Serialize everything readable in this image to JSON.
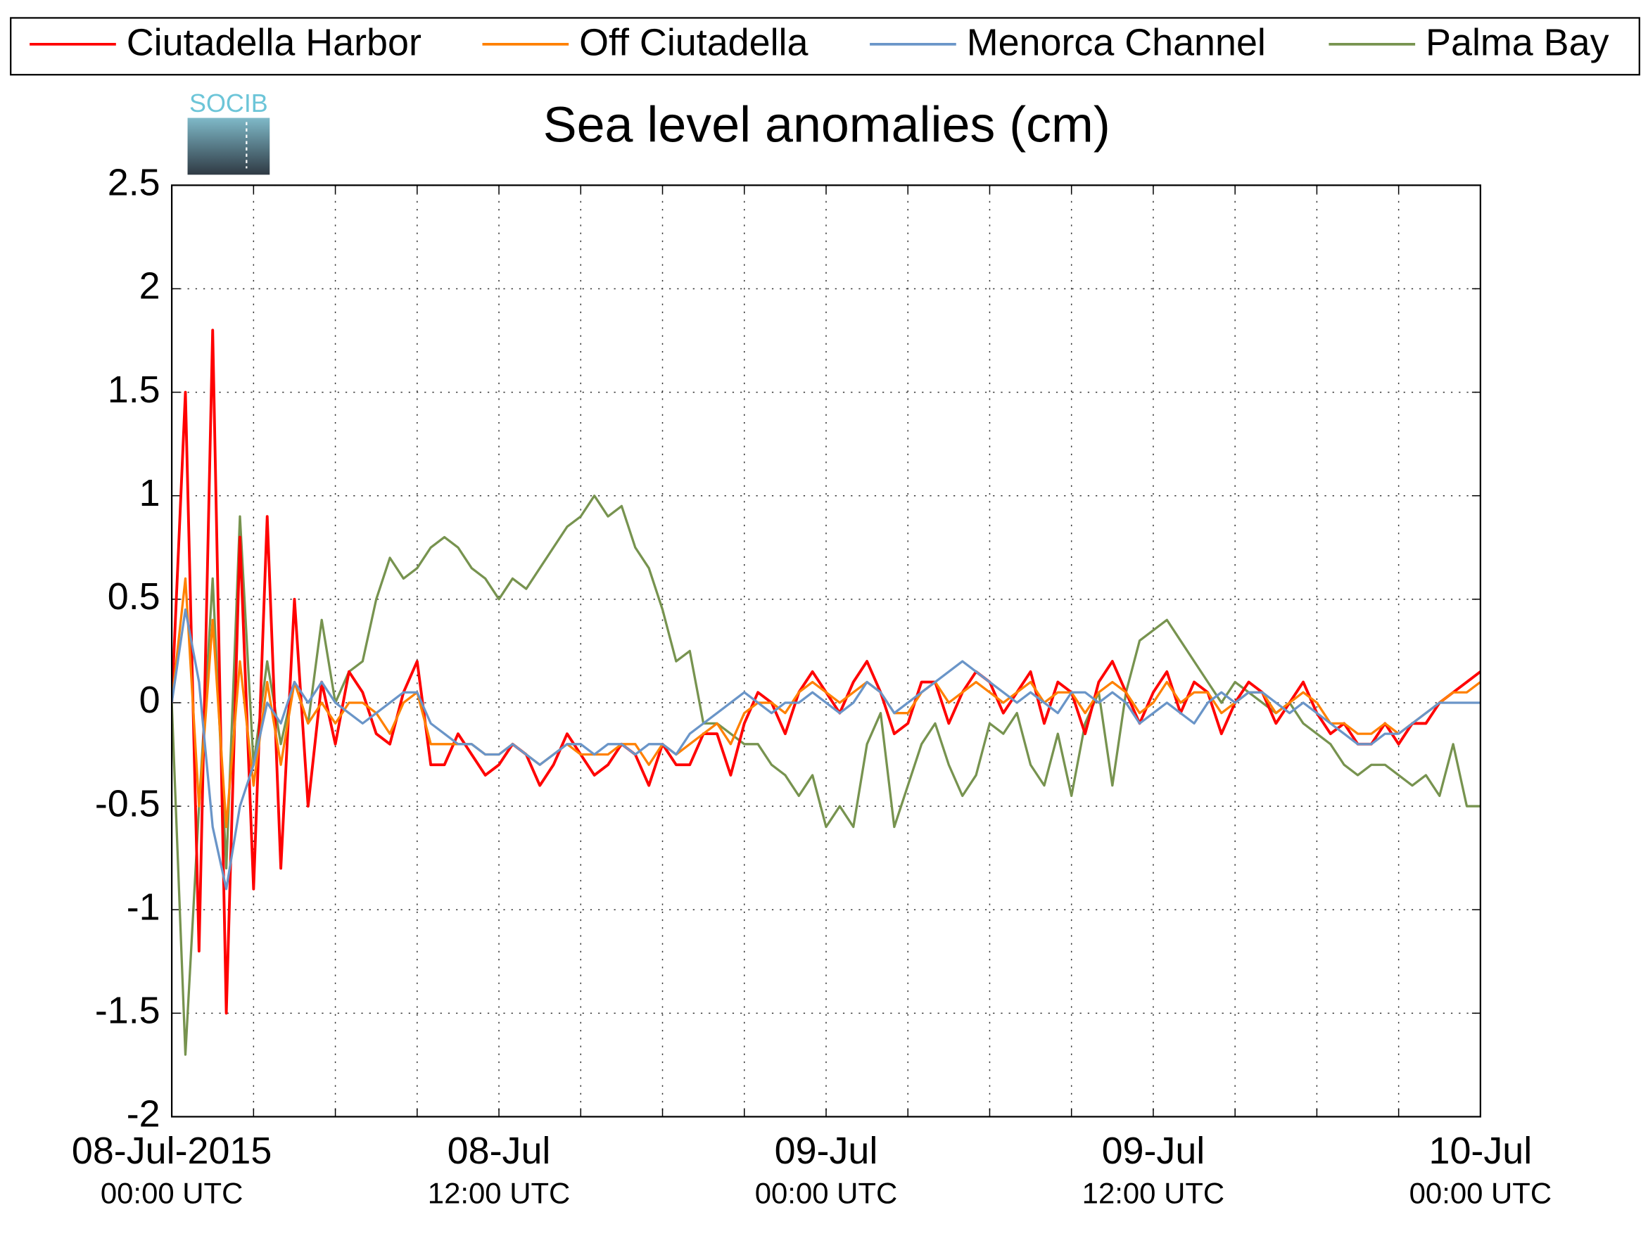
{
  "chart_data": {
    "type": "line",
    "title": "Sea level anomalies (cm)",
    "logo": "SOCIB",
    "x": [
      "2015-07-08T00:00",
      "2015-07-08T00:30",
      "2015-07-08T01:00",
      "2015-07-08T01:30",
      "2015-07-08T02:00",
      "2015-07-08T02:30",
      "2015-07-08T03:00",
      "2015-07-08T03:30",
      "2015-07-08T04:00",
      "2015-07-08T04:30",
      "2015-07-08T05:00",
      "2015-07-08T05:30",
      "2015-07-08T06:00",
      "2015-07-08T06:30",
      "2015-07-08T07:00",
      "2015-07-08T07:30",
      "2015-07-08T08:00",
      "2015-07-08T08:30",
      "2015-07-08T09:00",
      "2015-07-08T09:30",
      "2015-07-08T10:00",
      "2015-07-08T10:30",
      "2015-07-08T11:00",
      "2015-07-08T11:30",
      "2015-07-08T12:00",
      "2015-07-08T12:30",
      "2015-07-08T13:00",
      "2015-07-08T13:30",
      "2015-07-08T14:00",
      "2015-07-08T14:30",
      "2015-07-08T15:00",
      "2015-07-08T15:30",
      "2015-07-08T16:00",
      "2015-07-08T16:30",
      "2015-07-08T17:00",
      "2015-07-08T17:30",
      "2015-07-08T18:00",
      "2015-07-08T18:30",
      "2015-07-08T19:00",
      "2015-07-08T19:30",
      "2015-07-08T20:00",
      "2015-07-08T20:30",
      "2015-07-08T21:00",
      "2015-07-08T21:30",
      "2015-07-08T22:00",
      "2015-07-08T22:30",
      "2015-07-08T23:00",
      "2015-07-08T23:30",
      "2015-07-09T00:00",
      "2015-07-09T00:30",
      "2015-07-09T01:00",
      "2015-07-09T01:30",
      "2015-07-09T02:00",
      "2015-07-09T02:30",
      "2015-07-09T03:00",
      "2015-07-09T03:30",
      "2015-07-09T04:00",
      "2015-07-09T04:30",
      "2015-07-09T05:00",
      "2015-07-09T05:30",
      "2015-07-09T06:00",
      "2015-07-09T06:30",
      "2015-07-09T07:00",
      "2015-07-09T07:30",
      "2015-07-09T08:00",
      "2015-07-09T08:30",
      "2015-07-09T09:00",
      "2015-07-09T09:30",
      "2015-07-09T10:00",
      "2015-07-09T10:30",
      "2015-07-09T11:00",
      "2015-07-09T11:30",
      "2015-07-09T12:00",
      "2015-07-09T12:30",
      "2015-07-09T13:00",
      "2015-07-09T13:30",
      "2015-07-09T14:00",
      "2015-07-09T14:30",
      "2015-07-09T15:00",
      "2015-07-09T15:30",
      "2015-07-09T16:00",
      "2015-07-09T16:30",
      "2015-07-09T17:00",
      "2015-07-09T17:30",
      "2015-07-09T18:00",
      "2015-07-09T18:30",
      "2015-07-09T19:00",
      "2015-07-09T19:30",
      "2015-07-09T20:00",
      "2015-07-09T20:30",
      "2015-07-09T21:00",
      "2015-07-09T21:30",
      "2015-07-09T22:00",
      "2015-07-09T22:30",
      "2015-07-09T23:00",
      "2015-07-09T23:30",
      "2015-07-10T00:00"
    ],
    "series": [
      {
        "name": "Ciutadella Harbor",
        "color": "#ff0000",
        "values": [
          0,
          1.5,
          -1.2,
          1.8,
          -1.5,
          0.8,
          -0.9,
          0.9,
          -0.8,
          0.5,
          -0.5,
          0.1,
          -0.2,
          0.15,
          0.05,
          -0.15,
          -0.2,
          0.05,
          0.2,
          -0.3,
          -0.3,
          -0.15,
          -0.25,
          -0.35,
          -0.3,
          -0.2,
          -0.25,
          -0.4,
          -0.3,
          -0.15,
          -0.25,
          -0.35,
          -0.3,
          -0.2,
          -0.25,
          -0.4,
          -0.2,
          -0.3,
          -0.3,
          -0.15,
          -0.15,
          -0.35,
          -0.1,
          0.05,
          0,
          -0.15,
          0.05,
          0.15,
          0.05,
          -0.05,
          0.1,
          0.2,
          0.05,
          -0.15,
          -0.1,
          0.1,
          0.1,
          -0.1,
          0.05,
          0.15,
          0.1,
          -0.05,
          0.05,
          0.15,
          -0.1,
          0.1,
          0.05,
          -0.15,
          0.1,
          0.2,
          0.05,
          -0.1,
          0.05,
          0.15,
          -0.05,
          0.1,
          0.05,
          -0.15,
          0,
          0.1,
          0.05,
          -0.1,
          0,
          0.1,
          -0.05,
          -0.15,
          -0.1,
          -0.2,
          -0.2,
          -0.1,
          -0.2,
          -0.1,
          -0.1,
          0,
          0.05,
          0.1,
          0.15
        ]
      },
      {
        "name": "Off Ciutadella",
        "color": "#ff8000",
        "values": [
          0,
          0.6,
          -0.5,
          0.4,
          -0.6,
          0.2,
          -0.4,
          0.1,
          -0.3,
          0.1,
          -0.1,
          0,
          -0.1,
          0,
          0,
          -0.05,
          -0.15,
          0,
          0.05,
          -0.2,
          -0.2,
          -0.2,
          -0.2,
          -0.25,
          -0.25,
          -0.2,
          -0.25,
          -0.3,
          -0.25,
          -0.2,
          -0.25,
          -0.25,
          -0.25,
          -0.2,
          -0.2,
          -0.3,
          -0.2,
          -0.25,
          -0.2,
          -0.15,
          -0.1,
          -0.2,
          -0.05,
          0,
          0,
          -0.05,
          0.05,
          0.1,
          0.05,
          0,
          0.05,
          0.1,
          0.05,
          -0.05,
          -0.05,
          0.05,
          0.1,
          0,
          0.05,
          0.1,
          0.05,
          0,
          0.05,
          0.1,
          0,
          0.05,
          0.05,
          -0.05,
          0.05,
          0.1,
          0.05,
          -0.05,
          0,
          0.1,
          0,
          0.05,
          0.05,
          -0.05,
          0,
          0.05,
          0.05,
          -0.05,
          0,
          0.05,
          0,
          -0.1,
          -0.1,
          -0.15,
          -0.15,
          -0.1,
          -0.15,
          -0.1,
          -0.05,
          0,
          0.05,
          0.05,
          0.1
        ]
      },
      {
        "name": "Menorca Channel",
        "color": "#6a95c8",
        "values": [
          0,
          0.45,
          0.1,
          -0.6,
          -0.9,
          -0.5,
          -0.3,
          0,
          -0.1,
          0.1,
          0,
          0.1,
          0,
          -0.05,
          -0.1,
          -0.05,
          0,
          0.05,
          0.05,
          -0.1,
          -0.15,
          -0.2,
          -0.2,
          -0.25,
          -0.25,
          -0.2,
          -0.25,
          -0.3,
          -0.25,
          -0.2,
          -0.2,
          -0.25,
          -0.2,
          -0.2,
          -0.25,
          -0.2,
          -0.2,
          -0.25,
          -0.15,
          -0.1,
          -0.05,
          0,
          0.05,
          0,
          -0.05,
          0,
          0,
          0.05,
          0,
          -0.05,
          0,
          0.1,
          0.05,
          -0.05,
          0,
          0.05,
          0.1,
          0.15,
          0.2,
          0.15,
          0.1,
          0.05,
          0,
          0.05,
          0,
          -0.05,
          0.05,
          0.05,
          0,
          0.05,
          0,
          -0.1,
          -0.05,
          0,
          -0.05,
          -0.1,
          0,
          0.05,
          0,
          0.05,
          0.05,
          0,
          -0.05,
          0,
          -0.05,
          -0.1,
          -0.15,
          -0.2,
          -0.2,
          -0.15,
          -0.15,
          -0.1,
          -0.05,
          0,
          0,
          0,
          0
        ]
      },
      {
        "name": "Palma Bay",
        "color": "#77934f",
        "values": [
          0,
          -1.7,
          -0.5,
          0.6,
          -0.8,
          0.9,
          -0.3,
          0.2,
          -0.2,
          0.1,
          -0.1,
          0.4,
          0,
          0.15,
          0.2,
          0.5,
          0.7,
          0.6,
          0.65,
          0.75,
          0.8,
          0.75,
          0.65,
          0.6,
          0.5,
          0.6,
          0.55,
          0.65,
          0.75,
          0.85,
          0.9,
          1.0,
          0.9,
          0.95,
          0.75,
          0.65,
          0.45,
          0.2,
          0.25,
          -0.1,
          -0.1,
          -0.15,
          -0.2,
          -0.2,
          -0.3,
          -0.35,
          -0.45,
          -0.35,
          -0.6,
          -0.5,
          -0.6,
          -0.2,
          -0.05,
          -0.6,
          -0.4,
          -0.2,
          -0.1,
          -0.3,
          -0.45,
          -0.35,
          -0.1,
          -0.15,
          -0.05,
          -0.3,
          -0.4,
          -0.15,
          -0.45,
          -0.1,
          0.05,
          -0.4,
          0.05,
          0.3,
          0.35,
          0.4,
          0.3,
          0.2,
          0.1,
          0,
          0.1,
          0.05,
          0,
          -0.05,
          0,
          -0.1,
          -0.15,
          -0.2,
          -0.3,
          -0.35,
          -0.3,
          -0.3,
          -0.35,
          -0.4,
          -0.35,
          -0.45,
          -0.2,
          -0.5,
          -0.5
        ]
      }
    ],
    "xlim": [
      "2015-07-08T00:00",
      "2015-07-10T00:00"
    ],
    "xticks": [
      {
        "value": "2015-07-08T00:00",
        "label": [
          "08-Jul-2015",
          "00:00 UTC"
        ]
      },
      {
        "value": "2015-07-08T12:00",
        "label": [
          "08-Jul",
          "12:00 UTC"
        ]
      },
      {
        "value": "2015-07-09T00:00",
        "label": [
          "09-Jul",
          "00:00 UTC"
        ]
      },
      {
        "value": "2015-07-09T12:00",
        "label": [
          "09-Jul",
          "12:00 UTC"
        ]
      },
      {
        "value": "2015-07-10T00:00",
        "label": [
          "10-Jul",
          "00:00 UTC"
        ]
      }
    ],
    "xminor_ticks": [
      "2015-07-08T03:00",
      "2015-07-08T06:00",
      "2015-07-08T09:00",
      "2015-07-08T15:00",
      "2015-07-08T18:00",
      "2015-07-08T21:00",
      "2015-07-09T03:00",
      "2015-07-09T06:00",
      "2015-07-09T09:00",
      "2015-07-09T15:00",
      "2015-07-09T18:00",
      "2015-07-09T21:00"
    ],
    "ylim": [
      -2,
      2.5
    ],
    "yticks": [
      -2,
      -1.5,
      -1,
      -0.5,
      0,
      0.5,
      1,
      1.5,
      2,
      2.5
    ],
    "grid": true,
    "legend": "top"
  }
}
